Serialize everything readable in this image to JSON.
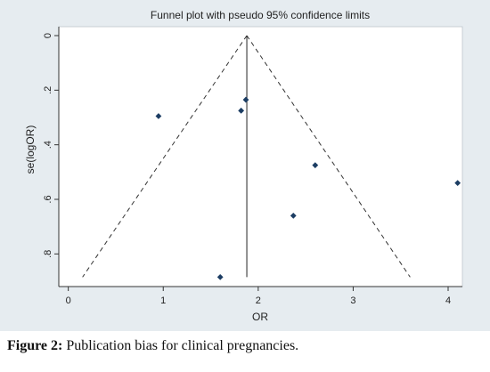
{
  "chart_data": {
    "type": "scatter",
    "title": "Funnel plot with pseudo 95% confidence limits",
    "xlabel": "OR",
    "ylabel": "se(logOR)",
    "xlim": [
      -0.1,
      4.15
    ],
    "ylim": [
      0,
      0.9
    ],
    "y_reversed": true,
    "x_ticks": [
      0,
      1,
      2,
      3,
      4
    ],
    "x_tick_labels": [
      "0",
      "1",
      "2",
      "3",
      "4"
    ],
    "y_ticks": [
      0,
      0.2,
      0.4,
      0.6,
      0.8
    ],
    "y_tick_labels": [
      "0",
      ".2",
      ".4",
      ".6",
      ".8"
    ],
    "grid": false,
    "points": [
      {
        "x": 0.95,
        "y": 0.295
      },
      {
        "x": 1.82,
        "y": 0.275
      },
      {
        "x": 1.87,
        "y": 0.235
      },
      {
        "x": 2.6,
        "y": 0.475
      },
      {
        "x": 2.37,
        "y": 0.66
      },
      {
        "x": 4.1,
        "y": 0.54
      },
      {
        "x": 1.6,
        "y": 0.885
      }
    ],
    "pooled_estimate": 1.88,
    "funnel": {
      "apex": {
        "x": 1.88,
        "y": 0
      },
      "left_base": {
        "x": 0.15,
        "y": 0.885
      },
      "right_base": {
        "x": 3.6,
        "y": 0.885
      }
    },
    "colors": {
      "marker": "#1c3d63",
      "axis": "#333333",
      "title": "#222222",
      "plot_bg": "#ffffff",
      "outer_bg": "#e6ecf0"
    }
  },
  "caption": {
    "label": "Figure 2:",
    "text": " Publication bias for clinical pregnancies."
  }
}
